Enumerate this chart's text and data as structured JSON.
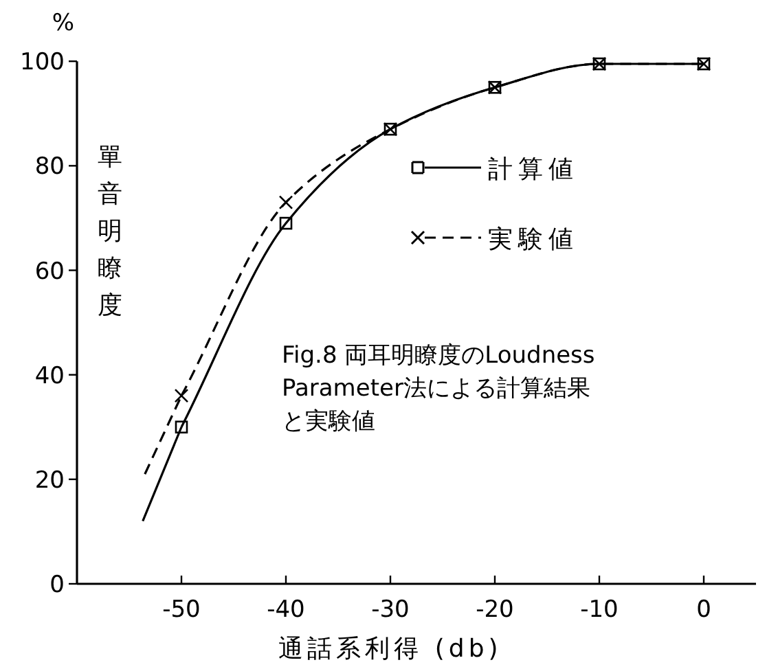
{
  "chart_data": {
    "type": "line",
    "title": "Fig.8 両耳明瞭度のLoudness Parameter法による計算結果と実験値",
    "xlabel": "通話系利得 (db)",
    "ylabel": "單音明瞭度",
    "annotations": [
      "%"
    ],
    "xlim": [
      -60,
      5
    ],
    "ylim": [
      0,
      100
    ],
    "xticks": [
      -50,
      -40,
      -30,
      -20,
      -10,
      0
    ],
    "yticks": [
      0,
      20,
      40,
      60,
      80,
      100
    ],
    "grid": false,
    "legend": "right",
    "series": [
      {
        "color": "#000000",
        "line_style": "solid",
        "x": [
          -53.7,
          -50
        ],
        "values": [
          12,
          30
        ]
      },
      {
        "name": "計算値",
        "color": "#000000",
        "marker": "square",
        "line_style": "solid",
        "x": [
          -50,
          -40,
          -30,
          -20,
          -10,
          0
        ],
        "values": [
          30,
          69,
          87,
          95,
          99.5,
          99.5
        ]
      },
      {
        "color": "#000000",
        "line_style": "dashed",
        "x": [
          -53.5,
          -50
        ],
        "values": [
          21,
          36
        ]
      },
      {
        "name": "実験値",
        "color": "#000000",
        "marker": "cross",
        "line_style": "dashed",
        "x": [
          -50,
          -40,
          -30,
          -20,
          -10,
          0
        ],
        "values": [
          36,
          73,
          87,
          95,
          99.5,
          99.5
        ]
      }
    ]
  }
}
